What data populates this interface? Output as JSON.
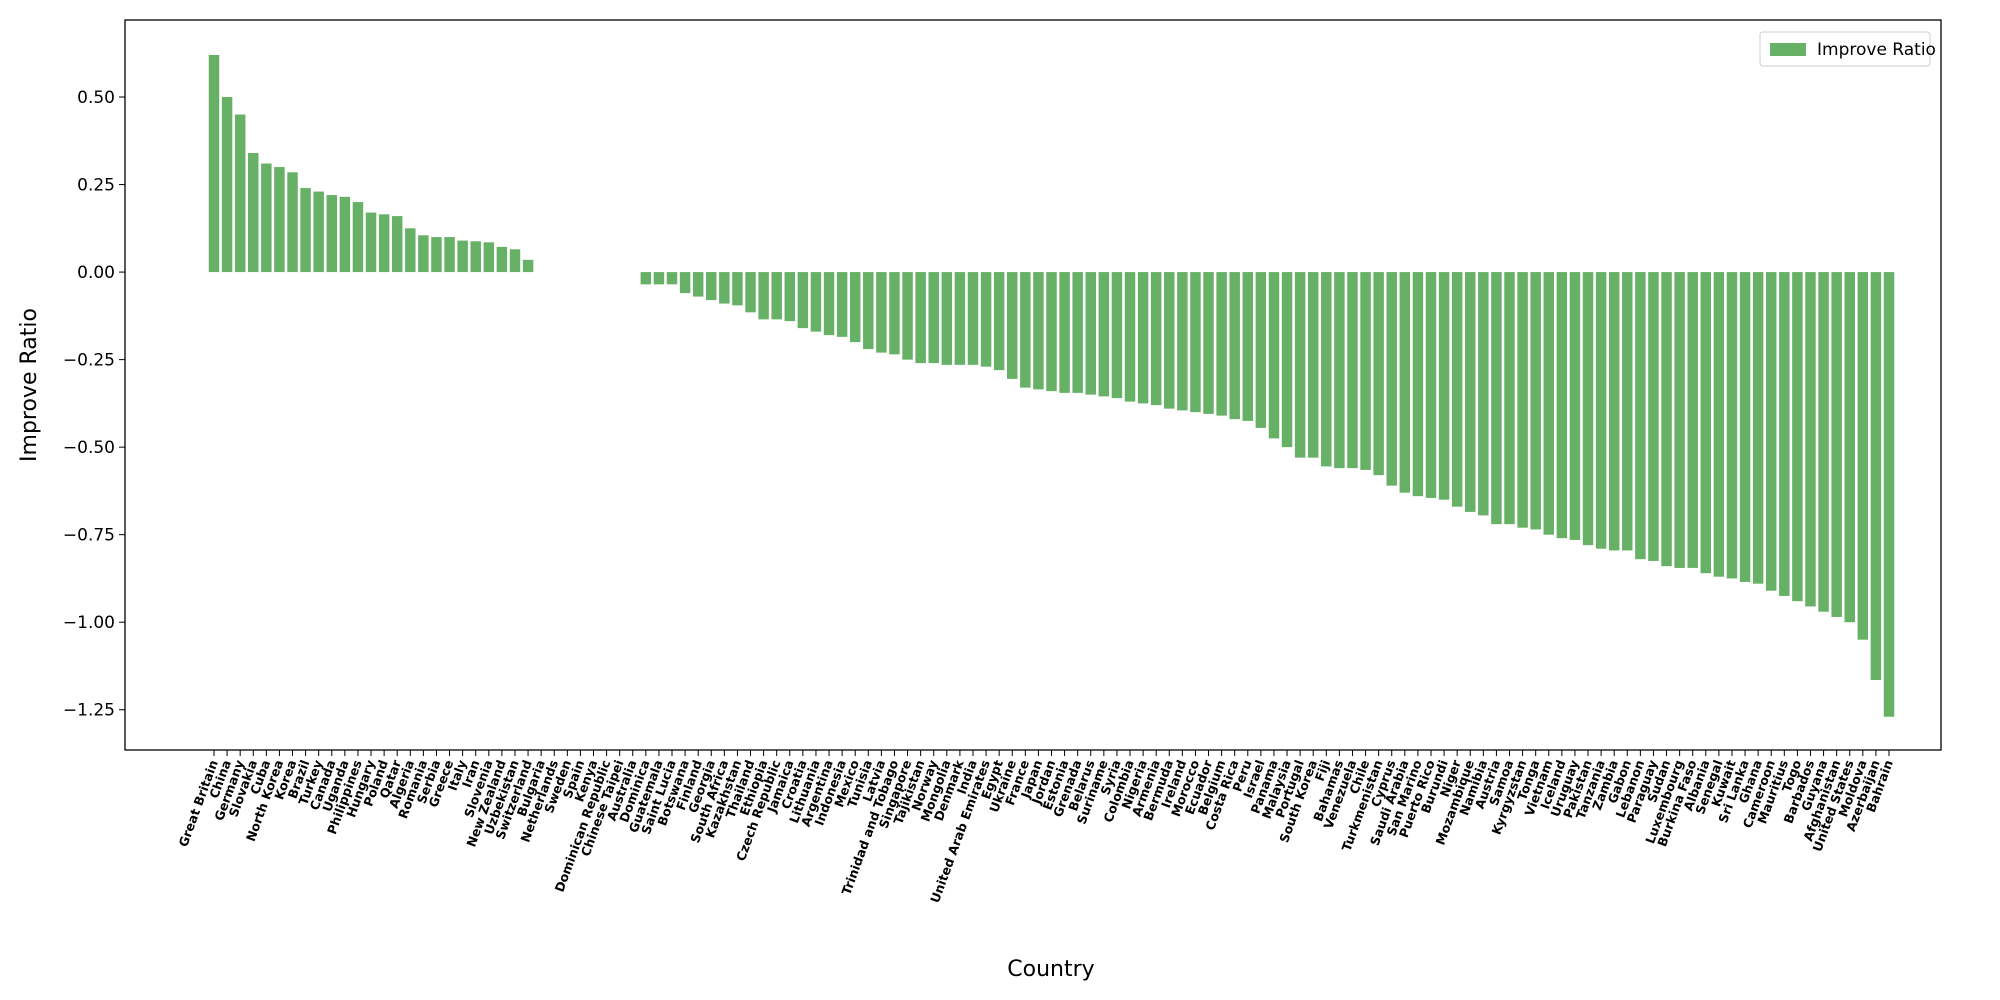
{
  "chart_data": {
    "type": "bar",
    "x_label": "Country",
    "y_label": "Improve Ratio",
    "legend": "upper right",
    "series": [
      {
        "name": "Improve Ratio",
        "color": "#66b166"
      }
    ],
    "categories": [
      "Great Britain",
      "China",
      "Germany",
      "Slovakia",
      "Cuba",
      "North Korea",
      "Korea",
      "Brazil",
      "Turkey",
      "Canada",
      "Uganda",
      "Philippines",
      "Hungary",
      "Poland",
      "Qatar",
      "Algeria",
      "Romania",
      "Serbia",
      "Greece",
      "Italy",
      "Iran",
      "Slovenia",
      "New Zealand",
      "Uzbekistan",
      "Switzerland",
      "Bulgaria",
      "Netherlands",
      "Sweden",
      "Spain",
      "Kenya",
      "Dominican Republic",
      "Chinese Taipei",
      "Australia",
      "Dominica",
      "Guatemala",
      "Saint Lucia",
      "Botswana",
      "Finland",
      "Georgia",
      "South Africa",
      "Kazakhstan",
      "Thailand",
      "Ethiopia",
      "Czech Republic",
      "Jamaica",
      "Croatia",
      "Lithuania",
      "Argentina",
      "Indonesia",
      "Mexico",
      "Tunisia",
      "Latvia",
      "Trinidad and Tobago",
      "Singapore",
      "Tajikistan",
      "Norway",
      "Mongolia",
      "Denmark",
      "India",
      "United Arab Emirates",
      "Egypt",
      "Ukraine",
      "France",
      "Japan",
      "Jordan",
      "Estonia",
      "Grenada",
      "Belarus",
      "Suriname",
      "Syria",
      "Colombia",
      "Nigeria",
      "Armenia",
      "Bermuda",
      "Ireland",
      "Morocco",
      "Ecuador",
      "Belgium",
      "Costa Rica",
      "Peru",
      "Israel",
      "Panama",
      "Malaysia",
      "Portugal",
      "South Korea",
      "Fiji",
      "Bahamas",
      "Venezuela",
      "Chile",
      "Turkmenistan",
      "Cyprus",
      "Saudi Arabia",
      "San Marino",
      "Puerto Rico",
      "Burundi",
      "Niger",
      "Mozambique",
      "Namibia",
      "Austria",
      "Samoa",
      "Kyrgyzstan",
      "Tonga",
      "Vietnam",
      "Iceland",
      "Uruguay",
      "Pakistan",
      "Tanzania",
      "Zambia",
      "Gabon",
      "Lebanon",
      "Paraguay",
      "Sudan",
      "Luxembourg",
      "Burkina Faso",
      "Albania",
      "Senegal",
      "Kuwait",
      "Sri Lanka",
      "Ghana",
      "Cameroon",
      "Mauritius",
      "Togo",
      "Barbados",
      "Guyana",
      "Afghanistan",
      "United States",
      "Moldova",
      "Azerbaijan",
      "Bahrain"
    ],
    "values": [
      0.62,
      0.5,
      0.45,
      0.34,
      0.31,
      0.3,
      0.285,
      0.24,
      0.23,
      0.22,
      0.215,
      0.2,
      0.17,
      0.165,
      0.16,
      0.125,
      0.105,
      0.1,
      0.1,
      0.09,
      0.088,
      0.085,
      0.072,
      0.065,
      0.035,
      0,
      0,
      0,
      0,
      0,
      0,
      0,
      0,
      -0.035,
      -0.035,
      -0.035,
      -0.06,
      -0.07,
      -0.08,
      -0.09,
      -0.095,
      -0.115,
      -0.135,
      -0.135,
      -0.14,
      -0.16,
      -0.17,
      -0.18,
      -0.185,
      -0.2,
      -0.22,
      -0.23,
      -0.235,
      -0.25,
      -0.26,
      -0.26,
      -0.265,
      -0.265,
      -0.265,
      -0.27,
      -0.28,
      -0.305,
      -0.33,
      -0.335,
      -0.34,
      -0.345,
      -0.345,
      -0.35,
      -0.355,
      -0.36,
      -0.37,
      -0.375,
      -0.38,
      -0.39,
      -0.395,
      -0.4,
      -0.405,
      -0.41,
      -0.42,
      -0.425,
      -0.445,
      -0.475,
      -0.5,
      -0.53,
      -0.53,
      -0.555,
      -0.56,
      -0.56,
      -0.565,
      -0.58,
      -0.61,
      -0.63,
      -0.64,
      -0.645,
      -0.65,
      -0.67,
      -0.685,
      -0.695,
      -0.72,
      -0.72,
      -0.73,
      -0.735,
      -0.75,
      -0.76,
      -0.765,
      -0.78,
      -0.79,
      -0.795,
      -0.795,
      -0.82,
      -0.825,
      -0.84,
      -0.845,
      -0.845,
      -0.86,
      -0.87,
      -0.875,
      -0.885,
      -0.89,
      -0.91,
      -0.925,
      -0.94,
      -0.955,
      -0.97,
      -0.985,
      -1.0,
      -1.05,
      -1.165,
      -1.27
    ],
    "ylim": [
      -1.365,
      0.72
    ],
    "yticks": [
      {
        "value": -1.25,
        "label": "−1.25"
      },
      {
        "value": -1.0,
        "label": "−1.00"
      },
      {
        "value": -0.75,
        "label": "−0.75"
      },
      {
        "value": -0.5,
        "label": "−0.50"
      },
      {
        "value": -0.25,
        "label": "−0.25"
      },
      {
        "value": 0,
        "label": "0.00"
      },
      {
        "value": 0.25,
        "label": "0.25"
      },
      {
        "value": 0.5,
        "label": "0.50"
      }
    ]
  }
}
